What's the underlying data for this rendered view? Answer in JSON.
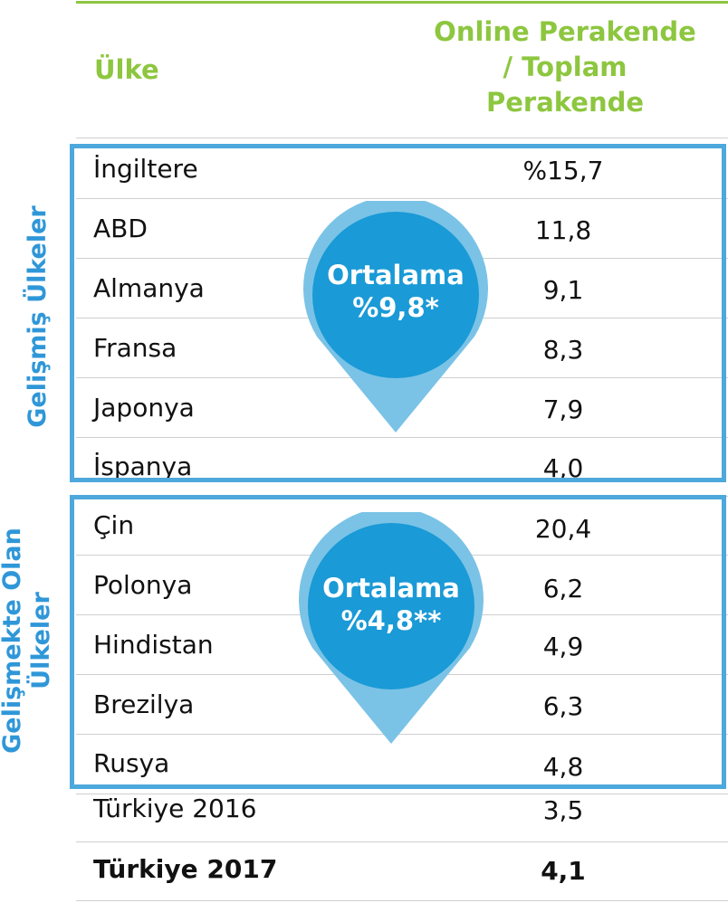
{
  "header": {
    "country_label": "Ülke",
    "value_label_lines": [
      "Online Perakende",
      "/ Toplam",
      "Perakende"
    ]
  },
  "groups": {
    "developed": {
      "label": "Gelişmiş Ülkeler",
      "average_lines": [
        "Ortalama",
        "%9,8*"
      ],
      "rows": [
        {
          "country": "İngiltere",
          "value": "%15,7"
        },
        {
          "country": "ABD",
          "value": "11,8"
        },
        {
          "country": "Almanya",
          "value": "9,1"
        },
        {
          "country": "Fransa",
          "value": "8,3"
        },
        {
          "country": "Japonya",
          "value": "7,9"
        },
        {
          "country": "İspanya",
          "value": "4,0"
        }
      ]
    },
    "developing": {
      "label_lines": [
        "Gelişmekte Olan",
        "Ülkeler"
      ],
      "average_lines": [
        "Ortalama",
        "%4,8**"
      ],
      "rows": [
        {
          "country": "Çin",
          "value": "20,4"
        },
        {
          "country": "Polonya",
          "value": "6,2"
        },
        {
          "country": "Hindistan",
          "value": "4,9"
        },
        {
          "country": "Brezilya",
          "value": "6,3"
        },
        {
          "country": "Rusya",
          "value": "4,8"
        }
      ]
    }
  },
  "turkey_rows": [
    {
      "country": "Türkiye 2016",
      "value": "3,5"
    },
    {
      "country": "Türkiye 2017",
      "value": "4,1"
    }
  ],
  "colors": {
    "header_green": "#8dc63f",
    "frame_blue": "#4da8dc",
    "label_blue": "#2f97d8",
    "pin_outer": "#7ac3e6",
    "pin_inner": "#1a9ad6"
  }
}
